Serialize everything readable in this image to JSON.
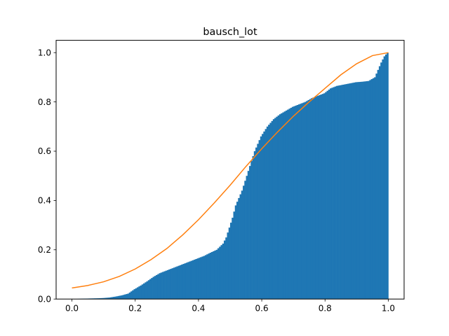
{
  "chart_data": {
    "type": "bar",
    "title": "bausch_lot",
    "xlabel": "",
    "ylabel": "",
    "xlim": [
      -0.05,
      1.05
    ],
    "ylim": [
      0,
      1.05
    ],
    "grid": false,
    "legend": "none",
    "x_ticks": [
      0.0,
      0.2,
      0.4,
      0.6,
      0.8,
      1.0
    ],
    "y_ticks": [
      0.0,
      0.2,
      0.4,
      0.6,
      0.8,
      1.0
    ],
    "x_tick_labels": [
      "0.0",
      "0.2",
      "0.4",
      "0.6",
      "0.8",
      "1.0"
    ],
    "y_tick_labels": [
      "0.0",
      "0.2",
      "0.4",
      "0.6",
      "0.8",
      "1.0"
    ],
    "series": [
      {
        "kind": "cumulative-histogram",
        "color": "#1f77b4",
        "x": [
          0.0,
          0.05,
          0.08,
          0.1,
          0.12,
          0.14,
          0.16,
          0.18,
          0.2,
          0.22,
          0.24,
          0.26,
          0.28,
          0.3,
          0.32,
          0.34,
          0.36,
          0.38,
          0.4,
          0.42,
          0.44,
          0.46,
          0.48,
          0.49,
          0.5,
          0.51,
          0.52,
          0.53,
          0.54,
          0.55,
          0.56,
          0.57,
          0.58,
          0.59,
          0.6,
          0.61,
          0.62,
          0.63,
          0.64,
          0.65,
          0.66,
          0.68,
          0.7,
          0.72,
          0.74,
          0.76,
          0.78,
          0.8,
          0.82,
          0.84,
          0.86,
          0.88,
          0.9,
          0.92,
          0.94,
          0.96,
          0.97,
          0.98,
          0.99,
          1.0
        ],
        "y": [
          0.0,
          0.002,
          0.003,
          0.004,
          0.006,
          0.01,
          0.015,
          0.022,
          0.04,
          0.055,
          0.072,
          0.09,
          0.105,
          0.115,
          0.125,
          0.135,
          0.145,
          0.155,
          0.165,
          0.175,
          0.188,
          0.2,
          0.225,
          0.25,
          0.29,
          0.33,
          0.38,
          0.41,
          0.44,
          0.48,
          0.52,
          0.56,
          0.6,
          0.63,
          0.66,
          0.68,
          0.7,
          0.715,
          0.73,
          0.74,
          0.75,
          0.765,
          0.78,
          0.79,
          0.8,
          0.815,
          0.825,
          0.835,
          0.855,
          0.865,
          0.87,
          0.875,
          0.88,
          0.882,
          0.885,
          0.9,
          0.93,
          0.96,
          0.985,
          1.0
        ]
      },
      {
        "kind": "line",
        "color": "#ff7f0e",
        "x": [
          0.0,
          0.05,
          0.1,
          0.15,
          0.2,
          0.25,
          0.3,
          0.35,
          0.4,
          0.45,
          0.5,
          0.55,
          0.6,
          0.65,
          0.7,
          0.75,
          0.8,
          0.85,
          0.9,
          0.95,
          1.0
        ],
        "y": [
          0.045,
          0.055,
          0.07,
          0.092,
          0.122,
          0.16,
          0.205,
          0.26,
          0.322,
          0.39,
          0.462,
          0.538,
          0.61,
          0.678,
          0.742,
          0.8,
          0.855,
          0.91,
          0.955,
          0.988,
          1.0
        ]
      }
    ]
  }
}
